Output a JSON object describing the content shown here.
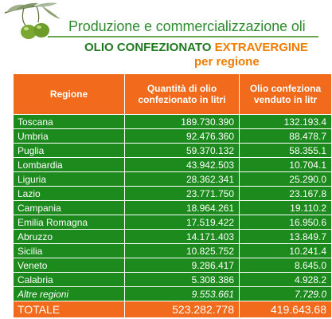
{
  "header": {
    "title": "Produzione e commercializzazione oli",
    "subtitle_main": "OLIO CONFEZIONATO",
    "subtitle_accent": "EXTRAVERGINE",
    "subtitle_line2": "per regione"
  },
  "table": {
    "headers": {
      "region": "Regione",
      "quantity": "Quantità di olio confezionato in litri",
      "sold": "Olio confeziona venduto in litr"
    },
    "rows": [
      {
        "region": "Toscana",
        "quantity": "189.730.390",
        "sold": "132.193.4"
      },
      {
        "region": "Umbria",
        "quantity": "92.476.360",
        "sold": "88.478.7"
      },
      {
        "region": "Puglia",
        "quantity": "59.370.132",
        "sold": "58.355.1"
      },
      {
        "region": "Lombardia",
        "quantity": "43.942.503",
        "sold": "10.704.1"
      },
      {
        "region": "Liguria",
        "quantity": "28.362.341",
        "sold": "25.290.0"
      },
      {
        "region": "Lazio",
        "quantity": "23.771.750",
        "sold": "23.167.8"
      },
      {
        "region": "Campania",
        "quantity": "18.964.261",
        "sold": "19.110.2"
      },
      {
        "region": "Emilia Romagna",
        "quantity": "17.519.422",
        "sold": "16.950.6"
      },
      {
        "region": "Abruzzo",
        "quantity": "14.171.403",
        "sold": "13.849.7"
      },
      {
        "region": "Sicilia",
        "quantity": "10.825.752",
        "sold": "10.241.4"
      },
      {
        "region": "Veneto",
        "quantity": "9.286.417",
        "sold": "8.645.0"
      },
      {
        "region": "Calabria",
        "quantity": "5.308.386",
        "sold": "4.928.2"
      },
      {
        "region": "Altre regioni",
        "quantity": "9.553.661",
        "sold": "7.729.0"
      }
    ],
    "total": {
      "label": "TOTALE",
      "quantity": "523.282.778",
      "sold": "419.643.68"
    }
  },
  "colors": {
    "header_orange": "#f26a1b",
    "row_green": "#1d8a1d",
    "title_green": "#2e8b2e",
    "accent_orange": "#f07c00"
  },
  "icons": {
    "logo": "olive-branch-icon"
  }
}
